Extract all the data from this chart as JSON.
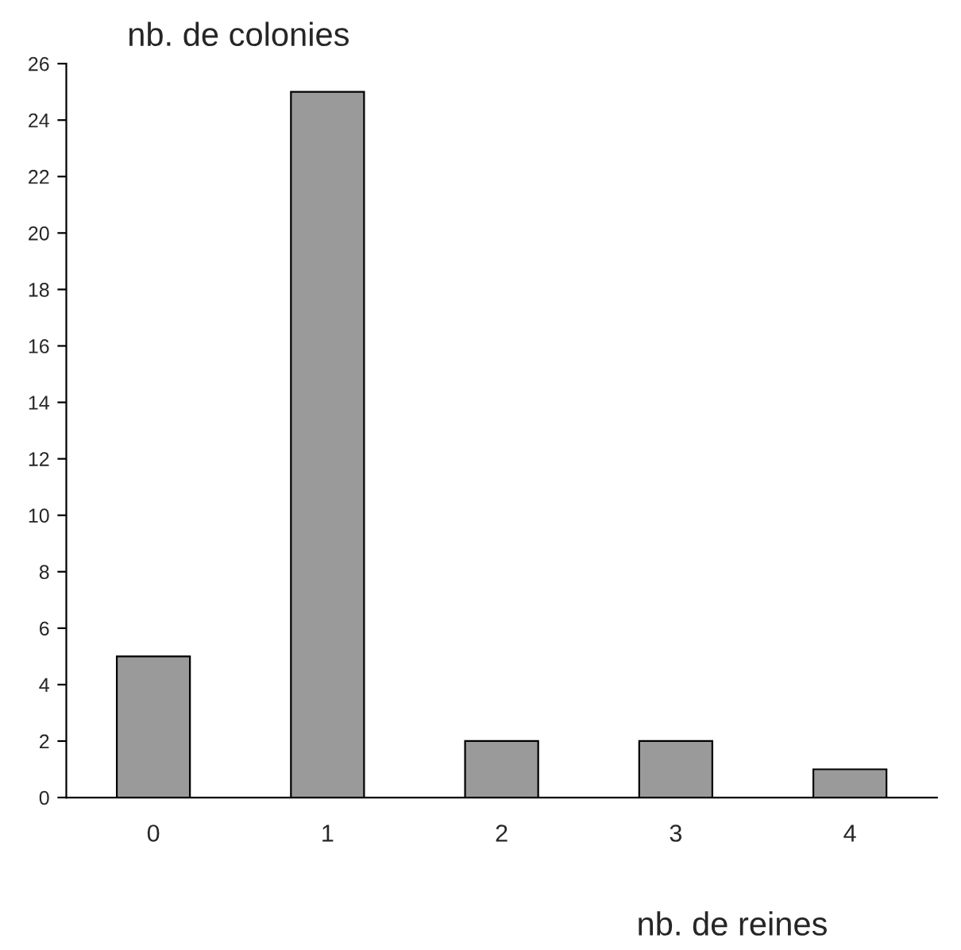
{
  "chart_data": {
    "type": "bar",
    "ylabel": "nb. de colonies",
    "xlabel": "nb. de reines",
    "categories": [
      "0",
      "1",
      "2",
      "3",
      "4"
    ],
    "values": [
      5,
      25,
      2,
      2,
      1
    ],
    "color": "#9a9a9a",
    "ylim": [
      0,
      26
    ],
    "yticks": [
      0,
      2,
      4,
      6,
      8,
      10,
      12,
      14,
      16,
      18,
      20,
      22,
      24,
      26
    ],
    "grid": false,
    "legend": false
  }
}
